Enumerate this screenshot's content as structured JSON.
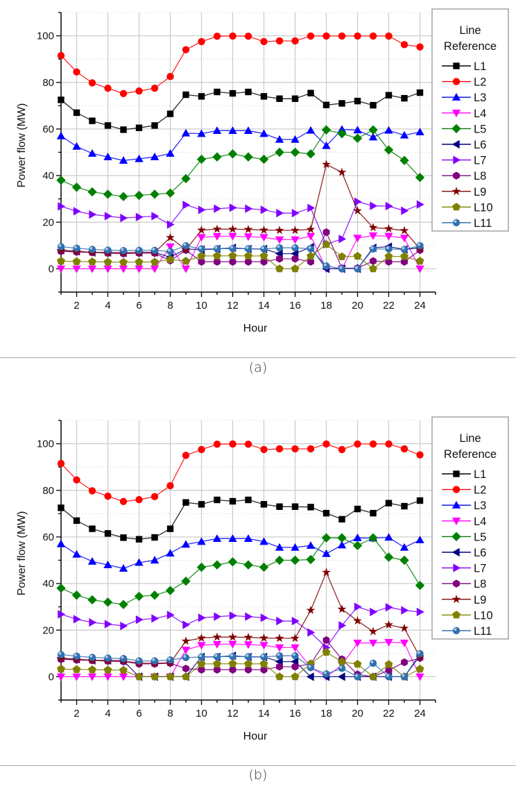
{
  "chart_data": [
    {
      "type": "line",
      "panel": "a",
      "title": "",
      "xlabel": "Hour",
      "ylabel": "Power flow (MW)",
      "xlim": [
        1,
        25
      ],
      "ylim": [
        -10,
        110
      ],
      "xticks": [
        2,
        4,
        6,
        8,
        10,
        12,
        14,
        16,
        18,
        20,
        22,
        24
      ],
      "yticks": [
        0,
        20,
        40,
        60,
        80,
        100
      ],
      "grid": true,
      "legend": {
        "title_line1": "Line",
        "title_line2": "Reference",
        "placement": "right"
      },
      "x": [
        1,
        2,
        3,
        4,
        5,
        6,
        7,
        8,
        9,
        10,
        11,
        12,
        13,
        14,
        15,
        16,
        17,
        18,
        19,
        20,
        21,
        22,
        23,
        24
      ],
      "series": [
        {
          "name": "L1",
          "color": "#000000",
          "marker": "square",
          "values": [
            72.5,
            67,
            63.5,
            61.5,
            59.7,
            60.5,
            61.5,
            66.5,
            74.7,
            74,
            75.9,
            75.3,
            75.9,
            74,
            73,
            73,
            75.4,
            70.3,
            71,
            72,
            70.2,
            74.5,
            73.2,
            75.6
          ]
        },
        {
          "name": "L2",
          "color": "#ff0000",
          "marker": "circle",
          "values": [
            91.5,
            84.5,
            79.8,
            77.5,
            75.2,
            76.3,
            77.5,
            82.5,
            94,
            97.5,
            99.8,
            99.9,
            99.8,
            97.5,
            97.8,
            97.8,
            99.9,
            99.9,
            99.9,
            99.9,
            99.9,
            99.9,
            96.2,
            95.2
          ]
        },
        {
          "name": "L3",
          "color": "#0000ff",
          "marker": "triangle-up",
          "values": [
            57,
            52.5,
            49.5,
            48,
            46.5,
            47.2,
            48,
            49.5,
            58.2,
            58,
            59.3,
            59.3,
            59.3,
            58,
            55.5,
            55.5,
            59.4,
            52.8,
            59.8,
            59.5,
            56.5,
            59.4,
            57.3,
            58.7
          ]
        },
        {
          "name": "L4",
          "color": "#ff00ff",
          "marker": "triangle-down",
          "values": [
            0,
            0,
            0,
            0,
            0,
            0,
            0,
            9.5,
            0,
            13.5,
            13.9,
            14,
            13.8,
            13.5,
            12.5,
            12.5,
            14,
            0,
            0,
            13.2,
            14.2,
            14,
            13.2,
            0
          ]
        },
        {
          "name": "L5",
          "color": "#008000",
          "marker": "diamond",
          "values": [
            38,
            35,
            33,
            32,
            31,
            31.5,
            32,
            32.5,
            38.7,
            47,
            48,
            49.3,
            48,
            47,
            50,
            50,
            49.3,
            59.6,
            58,
            56,
            59.6,
            51,
            46.5,
            39.2
          ]
        },
        {
          "name": "L6",
          "color": "#000080",
          "marker": "triangle-left",
          "values": [
            8,
            7.5,
            7,
            7,
            6.8,
            7,
            7,
            5,
            8.5,
            8.2,
            8.5,
            9,
            8.5,
            8.5,
            6.5,
            6.5,
            9.3,
            0,
            0,
            0,
            9,
            9.5,
            8.3,
            9
          ]
        },
        {
          "name": "L7",
          "color": "#8000ff",
          "marker": "triangle-right",
          "values": [
            26.8,
            24.7,
            23.3,
            22.6,
            21.8,
            22.2,
            22.6,
            19,
            27.4,
            25.3,
            25.8,
            26.2,
            25.8,
            25.3,
            23.9,
            23.9,
            26.1,
            10.5,
            12.8,
            28.8,
            27,
            26.9,
            24.9,
            27.6
          ]
        },
        {
          "name": "L8",
          "color": "#800080",
          "marker": "hexagon",
          "values": [
            7.5,
            7.2,
            7,
            6.7,
            6.5,
            6.7,
            6.7,
            3.5,
            8,
            3,
            3,
            3,
            3,
            3,
            4.3,
            4.3,
            3,
            15.7,
            0.2,
            0.3,
            3.3,
            3,
            3,
            8
          ]
        },
        {
          "name": "L9",
          "color": "#800000",
          "marker": "star",
          "values": [
            7.8,
            7.5,
            7,
            6.9,
            6.8,
            7,
            7,
            13.4,
            8.2,
            16.6,
            17,
            17,
            16.9,
            16.6,
            16.5,
            16.5,
            16.9,
            44.8,
            41.4,
            24.9,
            17.7,
            17.2,
            16.4,
            8.5
          ]
        },
        {
          "name": "L10",
          "color": "#808000",
          "marker": "pentagon",
          "values": [
            3.3,
            3.1,
            3,
            2.9,
            2.8,
            2.9,
            2.9,
            4,
            3.3,
            5.5,
            5.5,
            5.6,
            5.5,
            5.5,
            0,
            0,
            5.4,
            10.5,
            5.2,
            5.4,
            0,
            5.3,
            5.3,
            3.3
          ]
        },
        {
          "name": "L11",
          "color": "#3070b0",
          "marker": "sphere",
          "values": [
            9.5,
            8.8,
            8.3,
            8,
            7.8,
            7.9,
            7.9,
            7.4,
            9.9,
            8.5,
            8.6,
            8.7,
            8.6,
            8.5,
            9,
            9,
            8.6,
            1.2,
            0,
            0,
            8.5,
            8.5,
            8.3,
            9.9
          ]
        }
      ]
    },
    {
      "type": "line",
      "panel": "b",
      "title": "",
      "xlabel": "Hour",
      "ylabel": "Power flow (MW)",
      "xlim": [
        1,
        25
      ],
      "ylim": [
        -10,
        110
      ],
      "xticks": [
        2,
        4,
        6,
        8,
        10,
        12,
        14,
        16,
        18,
        20,
        22,
        24
      ],
      "yticks": [
        0,
        20,
        40,
        60,
        80,
        100
      ],
      "grid": true,
      "legend": {
        "title_line1": "Line",
        "title_line2": "Reference",
        "placement": "right"
      },
      "x": [
        1,
        2,
        3,
        4,
        5,
        6,
        7,
        8,
        9,
        10,
        11,
        12,
        13,
        14,
        15,
        16,
        17,
        18,
        19,
        20,
        21,
        22,
        23,
        24
      ],
      "series": [
        {
          "name": "L1",
          "color": "#000000",
          "marker": "square",
          "values": [
            72.5,
            67,
            63.5,
            61.5,
            59.7,
            59,
            59.8,
            63.5,
            74.8,
            74,
            75.9,
            75.3,
            75.9,
            74,
            73,
            73,
            72.8,
            70.2,
            67.6,
            72,
            70.2,
            74.5,
            73.2,
            75.6
          ]
        },
        {
          "name": "L2",
          "color": "#ff0000",
          "marker": "circle",
          "values": [
            91.5,
            84.5,
            79.8,
            77.5,
            75.2,
            76,
            77.3,
            82,
            95,
            97.5,
            99.8,
            99.9,
            99.8,
            97.5,
            97.8,
            97.8,
            97.8,
            99.9,
            97.5,
            99.9,
            99.9,
            99.9,
            97.8,
            95.2
          ]
        },
        {
          "name": "L3",
          "color": "#0000ff",
          "marker": "triangle-up",
          "values": [
            57,
            52.5,
            49.5,
            48,
            46.5,
            49,
            50,
            53,
            56.8,
            58,
            59.3,
            59.3,
            59.3,
            58,
            55.5,
            55.5,
            56.3,
            52.8,
            56.5,
            59.6,
            59.5,
            59.8,
            55.5,
            58.7
          ]
        },
        {
          "name": "L4",
          "color": "#ff00ff",
          "marker": "triangle-down",
          "values": [
            0,
            0,
            0,
            0,
            0,
            0,
            0,
            0,
            11.5,
            13.5,
            13.9,
            14,
            13.8,
            13.5,
            12.5,
            12.5,
            4,
            0,
            5,
            14.5,
            14.5,
            14.8,
            14.5,
            0
          ]
        },
        {
          "name": "L5",
          "color": "#008000",
          "marker": "diamond",
          "values": [
            38,
            35,
            33,
            32,
            31,
            34.5,
            35,
            37,
            41,
            47,
            48,
            49.3,
            48,
            47,
            50,
            50,
            50.3,
            59.6,
            59.6,
            56.3,
            59.6,
            51.3,
            50,
            39.2
          ]
        },
        {
          "name": "L6",
          "color": "#000080",
          "marker": "triangle-left",
          "values": [
            8,
            7.5,
            7,
            7,
            6.8,
            0,
            0,
            0,
            0,
            8.5,
            8.5,
            9,
            8.5,
            8.5,
            6.5,
            6.5,
            0,
            0,
            0,
            0,
            0,
            0,
            0,
            9
          ]
        },
        {
          "name": "L7",
          "color": "#8000ff",
          "marker": "triangle-right",
          "values": [
            26.8,
            24.7,
            23.3,
            22.6,
            21.8,
            24.5,
            25,
            26.5,
            22.3,
            25.3,
            25.8,
            26.2,
            25.8,
            25.3,
            23.9,
            23.9,
            19,
            12.5,
            22,
            30,
            27.8,
            29.8,
            28.5,
            27.8
          ]
        },
        {
          "name": "L8",
          "color": "#800080",
          "marker": "hexagon",
          "values": [
            7.5,
            7.2,
            7,
            6.7,
            6.5,
            5.5,
            5.5,
            5.8,
            3.5,
            3,
            3,
            3,
            3,
            3,
            4.3,
            4.3,
            5.5,
            15.7,
            7.5,
            1,
            0,
            2.8,
            6.2,
            8
          ]
        },
        {
          "name": "L9",
          "color": "#800000",
          "marker": "star",
          "values": [
            7.8,
            7.5,
            7,
            6.9,
            6.8,
            5.8,
            5.8,
            6,
            15.3,
            16.6,
            17,
            17,
            16.9,
            16.6,
            16.5,
            16.5,
            28.5,
            44.8,
            29,
            24,
            19.4,
            22.3,
            20.8,
            8.5
          ]
        },
        {
          "name": "L10",
          "color": "#808000",
          "marker": "pentagon",
          "values": [
            3.3,
            3.1,
            3,
            2.9,
            2.8,
            0,
            0,
            0,
            0,
            5.5,
            5.5,
            5.6,
            5.5,
            5.5,
            0,
            0,
            5.6,
            10.5,
            6.4,
            5.4,
            0,
            5.3,
            0,
            3.3
          ]
        },
        {
          "name": "L11",
          "color": "#3070b0",
          "marker": "sphere",
          "values": [
            9.5,
            8.8,
            8.3,
            8,
            7.8,
            6.8,
            6.8,
            7.2,
            8.2,
            8.5,
            8.6,
            8.7,
            8.6,
            8.5,
            9,
            9,
            3.9,
            1.2,
            3.6,
            0,
            5.8,
            0,
            0,
            9.9
          ]
        }
      ]
    }
  ],
  "captions": {
    "a": "(a)",
    "b": "(b)"
  }
}
